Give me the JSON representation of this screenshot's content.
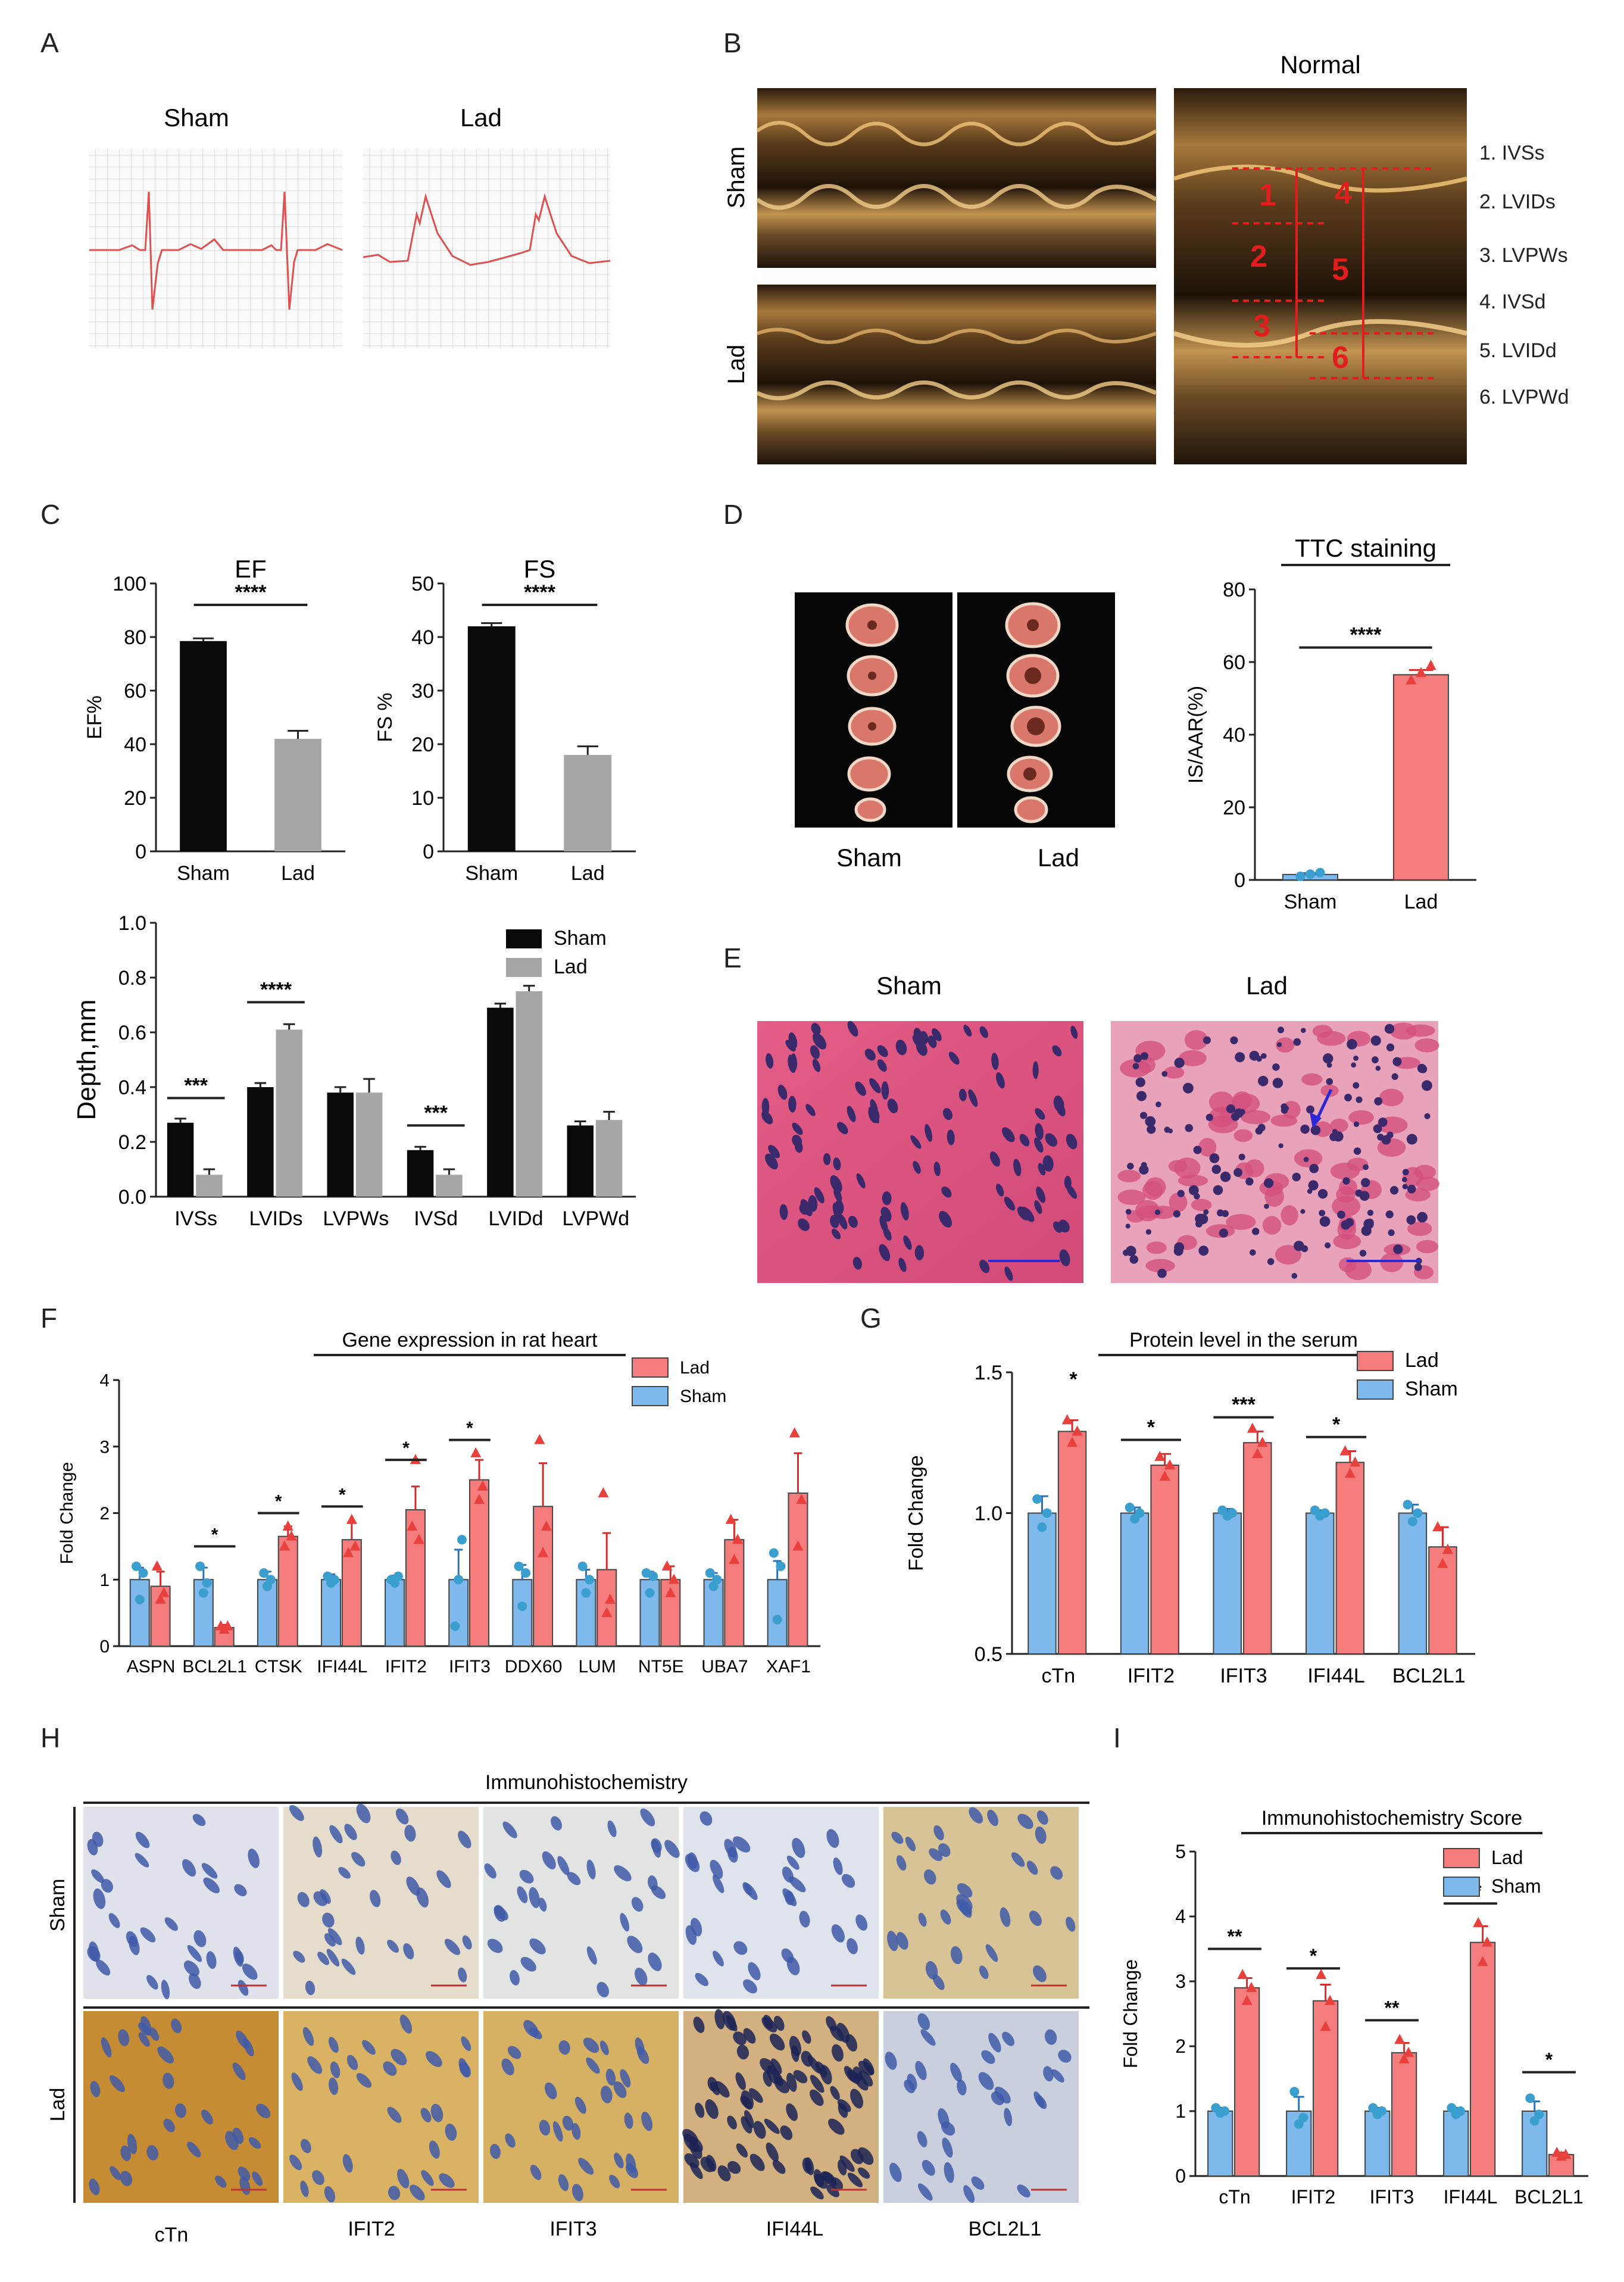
{
  "panel_letters": [
    "A",
    "B",
    "C",
    "D",
    "E",
    "F",
    "G",
    "H",
    "I"
  ],
  "colors": {
    "black": "#0a0a0a",
    "gray": "#a6a6a6",
    "lad": "#f47c7c",
    "sham": "#7fb8ea",
    "lad_dot": "#e8403d",
    "sham_dot": "#3a9fcf",
    "red_annot": "#e21d1d",
    "blue_annot": "#2c28d6"
  },
  "panel_a": {
    "labels": [
      "Sham",
      "Lad"
    ]
  },
  "panel_b": {
    "row_labels": [
      "Sham",
      "Lad"
    ],
    "normal_title": "Normal",
    "numbers": [
      "1",
      "2",
      "3",
      "4",
      "5",
      "6"
    ],
    "legend": [
      "1. IVSs",
      "2. LVIDs",
      "3. LVPWs",
      "4. IVSd",
      "5. LVIDd",
      "6. LVPWd"
    ]
  },
  "panel_d": {
    "labels": [
      "Sham",
      "Lad"
    ]
  },
  "panel_e": {
    "labels": [
      "Sham",
      "Lad"
    ]
  },
  "panel_h": {
    "title": "Immunohistochemistry",
    "row_labels": [
      "Sham",
      "Lad"
    ],
    "columns": [
      "cTn",
      "IFIT2",
      "IFIT3",
      "IFI44L",
      "BCL2L1"
    ]
  },
  "chart_data": [
    {
      "id": "C_EF",
      "type": "bar",
      "title": "EF",
      "ylabel": "EF%",
      "categories": [
        "Sham",
        "Lad"
      ],
      "values": [
        78.5,
        42
      ],
      "errors": [
        1,
        3
      ],
      "bar_colors": [
        "black",
        "gray"
      ],
      "ylim": [
        0,
        100
      ],
      "yticks": [
        0,
        20,
        40,
        60,
        80,
        100
      ],
      "sig": [
        {
          "label": "****",
          "from": 0,
          "to": 1,
          "y": 92
        }
      ]
    },
    {
      "id": "C_FS",
      "type": "bar",
      "title": "FS",
      "ylabel": "FS %",
      "categories": [
        "Sham",
        "Lad"
      ],
      "values": [
        42,
        18
      ],
      "errors": [
        0.6,
        1.6
      ],
      "bar_colors": [
        "black",
        "gray"
      ],
      "ylim": [
        0,
        50
      ],
      "yticks": [
        0,
        10,
        20,
        30,
        40,
        50
      ],
      "sig": [
        {
          "label": "****",
          "from": 0,
          "to": 1,
          "y": 46
        }
      ]
    },
    {
      "id": "C_depth",
      "type": "bar",
      "ylabel": "Depth,mm",
      "categories": [
        "IVSs",
        "LVIDs",
        "LVPWs",
        "IVSd",
        "LVIDd",
        "LVPWd"
      ],
      "series": [
        {
          "name": "Sham",
          "color": "black",
          "values": [
            0.27,
            0.4,
            0.38,
            0.17,
            0.69,
            0.26
          ],
          "errors": [
            0.015,
            0.015,
            0.02,
            0.012,
            0.015,
            0.015
          ]
        },
        {
          "name": "Lad",
          "color": "gray",
          "values": [
            0.08,
            0.61,
            0.38,
            0.08,
            0.75,
            0.28
          ],
          "errors": [
            0.02,
            0.02,
            0.05,
            0.02,
            0.02,
            0.03
          ]
        }
      ],
      "ylim": [
        0,
        1.0
      ],
      "yticks": [
        0,
        0.2,
        0.4,
        0.6,
        0.8,
        1.0
      ],
      "ytick_labels": [
        "0.0",
        "0.2",
        "0.4",
        "0.6",
        "0.8",
        "1.0"
      ],
      "sig": [
        {
          "label": "***",
          "cat": 0,
          "y": 0.36
        },
        {
          "label": "****",
          "cat": 1,
          "y": 0.71
        },
        {
          "label": "***",
          "cat": 3,
          "y": 0.26
        }
      ]
    },
    {
      "id": "D_TTC",
      "type": "bar",
      "title": "TTC staining",
      "ylabel": "IS/AAR(%)",
      "categories": [
        "Sham",
        "Lad"
      ],
      "values": [
        1.5,
        56.5
      ],
      "errors": [
        0.4,
        1.3
      ],
      "bar_colors": [
        "sham",
        "lad"
      ],
      "points": [
        [
          1.0,
          1.6,
          2.0
        ],
        [
          55,
          57,
          59
        ]
      ],
      "ylim": [
        0,
        80
      ],
      "yticks": [
        0,
        20,
        40,
        60,
        80
      ],
      "sig": [
        {
          "label": "****",
          "from": 0,
          "to": 1,
          "y": 64
        }
      ]
    },
    {
      "id": "F_gene",
      "type": "bar",
      "title": "Gene expression in rat heart",
      "ylabel": "Fold Change",
      "categories": [
        "ASPN",
        "BCL2L1",
        "CTSK",
        "IFI44L",
        "IFIT2",
        "IFIT3",
        "DDX60",
        "LUM",
        "NT5E",
        "UBA7",
        "XAF1"
      ],
      "series": [
        {
          "name": "Sham",
          "color": "sham",
          "values": [
            1,
            1,
            1,
            1,
            1,
            1,
            1,
            1,
            1,
            1,
            1
          ],
          "errors": [
            0.18,
            0.18,
            0.12,
            0.08,
            0.06,
            0.45,
            0.22,
            0.15,
            0.12,
            0.1,
            0.28
          ],
          "points": [
            [
              1.2,
              0.7,
              1.1
            ],
            [
              1.2,
              0.8,
              0.95
            ],
            [
              1.1,
              0.9,
              1.0
            ],
            [
              1.05,
              0.95,
              1.0
            ],
            [
              1.0,
              0.95,
              1.05
            ],
            [
              0.3,
              1.0,
              1.6
            ],
            [
              1.2,
              0.6,
              1.1
            ],
            [
              1.2,
              0.8,
              1.0
            ],
            [
              1.1,
              0.8,
              1.05
            ],
            [
              1.1,
              0.9,
              1.0
            ],
            [
              1.4,
              0.4,
              1.2
            ]
          ]
        },
        {
          "name": "Lad",
          "color": "lad",
          "values": [
            0.9,
            0.28,
            1.65,
            1.6,
            2.05,
            2.5,
            2.1,
            1.15,
            1.0,
            1.6,
            2.3
          ],
          "errors": [
            0.22,
            0.04,
            0.15,
            0.25,
            0.35,
            0.3,
            0.65,
            0.55,
            0.2,
            0.3,
            0.6
          ],
          "points": [
            [
              1.2,
              0.7,
              0.8
            ],
            [
              0.3,
              0.25,
              0.3
            ],
            [
              1.5,
              1.8,
              1.65
            ],
            [
              1.4,
              1.9,
              1.5
            ],
            [
              1.8,
              2.8,
              1.6
            ],
            [
              2.9,
              2.2,
              2.4
            ],
            [
              3.1,
              1.4,
              1.8
            ],
            [
              2.3,
              0.5,
              0.7
            ],
            [
              1.2,
              0.8,
              1.0
            ],
            [
              1.9,
              1.3,
              1.6
            ],
            [
              3.2,
              1.5,
              2.2
            ]
          ]
        }
      ],
      "ylim": [
        0,
        4
      ],
      "yticks": [
        0,
        1,
        2,
        3,
        4
      ],
      "sig": [
        {
          "label": "*",
          "cat": 1,
          "y": 1.5
        },
        {
          "label": "*",
          "cat": 2,
          "y": 2.0
        },
        {
          "label": "*",
          "cat": 3,
          "y": 2.1
        },
        {
          "label": "*",
          "cat": 4,
          "y": 2.8
        },
        {
          "label": "*",
          "cat": 5,
          "y": 3.1
        }
      ]
    },
    {
      "id": "G_protein",
      "type": "bar",
      "title": "Protein level in the serum",
      "ylabel": "Fold Change",
      "categories": [
        "cTn",
        "IFIT2",
        "IFIT3",
        "IFI44L",
        "BCL2L1"
      ],
      "series": [
        {
          "name": "Sham",
          "color": "sham",
          "values": [
            1.0,
            1.0,
            1.0,
            1.0,
            1.0
          ],
          "errors": [
            0.06,
            0.02,
            0.015,
            0.01,
            0.03
          ],
          "points": [
            [
              1.05,
              0.95,
              1.0
            ],
            [
              1.02,
              0.98,
              1.0
            ],
            [
              1.01,
              0.99,
              1.0
            ],
            [
              1.01,
              0.99,
              1.0
            ],
            [
              1.03,
              0.97,
              1.0
            ]
          ]
        },
        {
          "name": "Lad",
          "color": "lad",
          "values": [
            1.29,
            1.17,
            1.25,
            1.18,
            0.88
          ],
          "errors": [
            0.04,
            0.04,
            0.04,
            0.04,
            0.07
          ],
          "points": [
            [
              1.33,
              1.25,
              1.29
            ],
            [
              1.2,
              1.13,
              1.17
            ],
            [
              1.3,
              1.21,
              1.25
            ],
            [
              1.22,
              1.14,
              1.18
            ],
            [
              0.95,
              0.82,
              0.87
            ]
          ]
        }
      ],
      "ylim": [
        0.5,
        1.5
      ],
      "yticks": [
        0.5,
        1.0,
        1.5
      ],
      "ytick_labels": [
        "0.5",
        "1.0",
        "1.5"
      ],
      "sig": [
        {
          "label": "*",
          "cat": 0,
          "y": 1.43,
          "nobar": true
        },
        {
          "label": "*",
          "cat": 1,
          "y": 1.26
        },
        {
          "label": "***",
          "cat": 2,
          "y": 1.34
        },
        {
          "label": "*",
          "cat": 3,
          "y": 1.27
        }
      ]
    },
    {
      "id": "I_score",
      "type": "bar",
      "title": "Immunohistochemistry  Score",
      "ylabel": "Fold Change",
      "categories": [
        "cTn",
        "IFIT2",
        "IFIT3",
        "IFI44L",
        "BCL2L1"
      ],
      "series": [
        {
          "name": "Sham",
          "color": "sham",
          "values": [
            1.0,
            1.0,
            1.0,
            1.0,
            1.0
          ],
          "errors": [
            0.05,
            0.22,
            0.05,
            0.05,
            0.15
          ],
          "points": [
            [
              1.05,
              0.97,
              1.0
            ],
            [
              1.3,
              0.8,
              0.9
            ],
            [
              1.05,
              0.95,
              1.0
            ],
            [
              1.05,
              0.95,
              1.0
            ],
            [
              1.2,
              0.85,
              0.95
            ]
          ]
        },
        {
          "name": "Lad",
          "color": "lad",
          "values": [
            2.9,
            2.7,
            1.9,
            3.6,
            0.33
          ],
          "errors": [
            0.15,
            0.25,
            0.15,
            0.25,
            0.03
          ],
          "points": [
            [
              3.1,
              2.7,
              2.9
            ],
            [
              3.1,
              2.3,
              2.7
            ],
            [
              2.1,
              1.8,
              1.9
            ],
            [
              3.9,
              3.3,
              3.6
            ],
            [
              0.36,
              0.3,
              0.33
            ]
          ]
        }
      ],
      "ylim": [
        0,
        5
      ],
      "yticks": [
        0,
        1,
        2,
        3,
        4,
        5
      ],
      "sig": [
        {
          "label": "**",
          "cat": 0,
          "y": 3.5
        },
        {
          "label": "*",
          "cat": 1,
          "y": 3.2
        },
        {
          "label": "**",
          "cat": 2,
          "y": 2.4
        },
        {
          "label": "***",
          "cat": 3,
          "y": 4.2
        },
        {
          "label": "*",
          "cat": 4,
          "y": 1.6
        }
      ]
    }
  ]
}
